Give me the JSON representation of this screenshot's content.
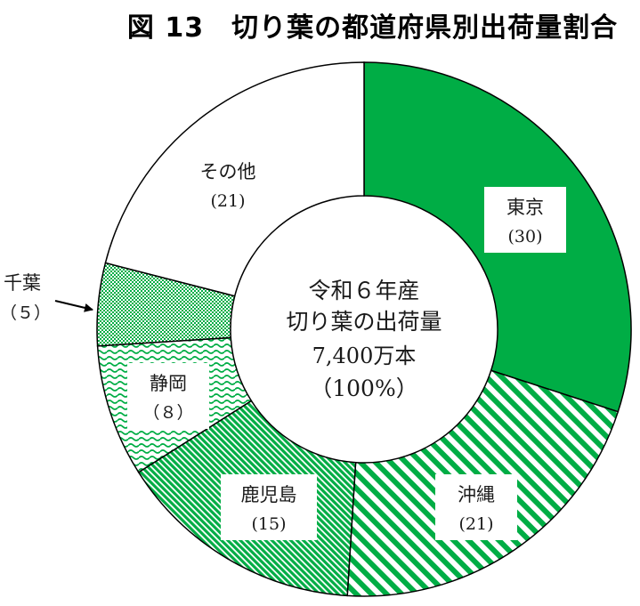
{
  "title": "図 13　切り葉の都道府県別出荷量割合",
  "colors": {
    "primary": "#00ad45",
    "stroke": "#000000",
    "background": "#ffffff"
  },
  "chart_data": {
    "type": "pie",
    "title": "図 13　切り葉の都道府県別出荷量割合",
    "center_text": [
      "令和６年産",
      "切り葉の出荷量",
      "7,400万本",
      "（100%）"
    ],
    "slices": [
      {
        "label": "東京",
        "value": 30,
        "value_text": "(30)",
        "pattern": "solid"
      },
      {
        "label": "沖縄",
        "value": 21,
        "value_text": "(21)",
        "pattern": "diagonal"
      },
      {
        "label": "鹿児島",
        "value": 15,
        "value_text": "(15)",
        "pattern": "dense-diagonal"
      },
      {
        "label": "静岡",
        "value": 8,
        "value_text": "（８）",
        "pattern": "wavy"
      },
      {
        "label": "千葉",
        "value": 5,
        "value_text": "（５）",
        "pattern": "dots"
      },
      {
        "label": "その他",
        "value": 21,
        "value_text": "(21)",
        "pattern": "none"
      }
    ]
  }
}
